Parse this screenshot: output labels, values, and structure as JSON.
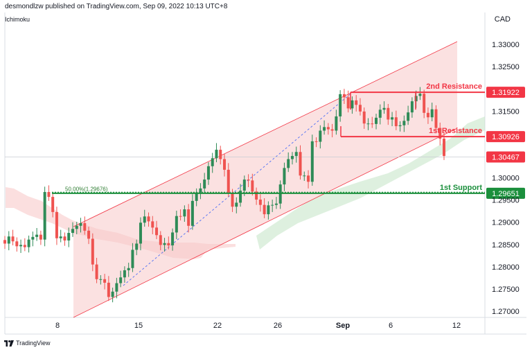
{
  "header": {
    "published": "desmondlzw published on TradingView.com, Sep 09, 2022 10:13 UTC+8",
    "study": "Ichimoku",
    "currency": "CAD"
  },
  "footer": {
    "brand": "TradingView",
    "logo_icon": "tradingview-logo-icon"
  },
  "colors": {
    "bull": "#26a69a",
    "bullCandle": "#2e8b57",
    "bear": "#ef5350",
    "resistance": "#f23645",
    "support": "#1b8f3c",
    "channel": "#f8c9c9"
  },
  "chart_data": {
    "type": "candlestick",
    "symbol_currency": "CAD",
    "ylim": [
      1.2675,
      1.336
    ],
    "y_ticks": [
      "1.33000",
      "1.32500",
      "1.32000",
      "1.31500",
      "1.31000",
      "1.30500",
      "1.30000",
      "1.29500",
      "1.29000",
      "1.28500",
      "1.28000",
      "1.27500",
      "1.27000"
    ],
    "x_ticks": [
      "8",
      "15",
      "22",
      "26",
      "Sep",
      "6",
      "12"
    ],
    "x_tick_values": [
      0,
      5,
      10,
      13,
      16,
      18,
      21
    ],
    "current_price": "1.30467",
    "annotations": [
      {
        "text": "2nd Resistance",
        "value": 1.31922,
        "label": "1.31922",
        "kind": "resistance"
      },
      {
        "text": "1st Resistance",
        "value": 1.30926,
        "label": "1.30926",
        "kind": "resistance"
      },
      {
        "text": "1st Support",
        "value": 1.29651,
        "label": "1.29651",
        "kind": "support"
      }
    ],
    "fib_label": "50.00%(1.29676)",
    "fib_level": 1.29676,
    "close_series": [
      1.2852,
      1.2868,
      1.2857,
      1.2846,
      1.2849,
      1.2844,
      1.2861,
      1.2867,
      1.2872,
      1.2861,
      1.2968,
      1.2957,
      1.2923,
      1.2864,
      1.2868,
      1.2859,
      1.2876,
      1.2885,
      1.2892,
      1.2898,
      1.2881,
      1.2863,
      1.2805,
      1.2772,
      1.2772,
      1.2764,
      1.2732,
      1.2744,
      1.2763,
      1.2776,
      1.2792,
      1.2797,
      1.2838,
      1.2852,
      1.2899,
      1.2913,
      1.2902,
      1.2888,
      1.2871,
      1.2849,
      1.2853,
      1.2848,
      1.2877,
      1.2914,
      1.2913,
      1.2929,
      1.2892,
      1.2948,
      1.2967,
      1.2976,
      1.2996,
      1.3026,
      1.3044,
      1.3063,
      1.3042,
      1.3018,
      1.2966,
      1.2935,
      1.2944,
      1.2971,
      1.2996,
      1.2994,
      1.2969,
      1.2951,
      1.2939,
      1.2918,
      1.2938,
      1.2939,
      1.2942,
      1.2985,
      1.3022,
      1.3042,
      1.3049,
      1.3058,
      1.3005,
      1.3005,
      1.2991,
      1.3082,
      1.3081,
      1.3106,
      1.3114,
      1.3109,
      1.3106,
      1.3138,
      1.3188,
      1.3181,
      1.3156,
      1.3174,
      1.3164,
      1.3149,
      1.3122,
      1.3122,
      1.3121,
      1.3135,
      1.3153,
      1.3157,
      1.3131,
      1.3136,
      1.3116,
      1.3118,
      1.3128,
      1.3147,
      1.3172,
      1.3184,
      1.3189,
      1.3146,
      1.3136,
      1.3154,
      1.3112,
      1.3088,
      1.3049
    ]
  }
}
